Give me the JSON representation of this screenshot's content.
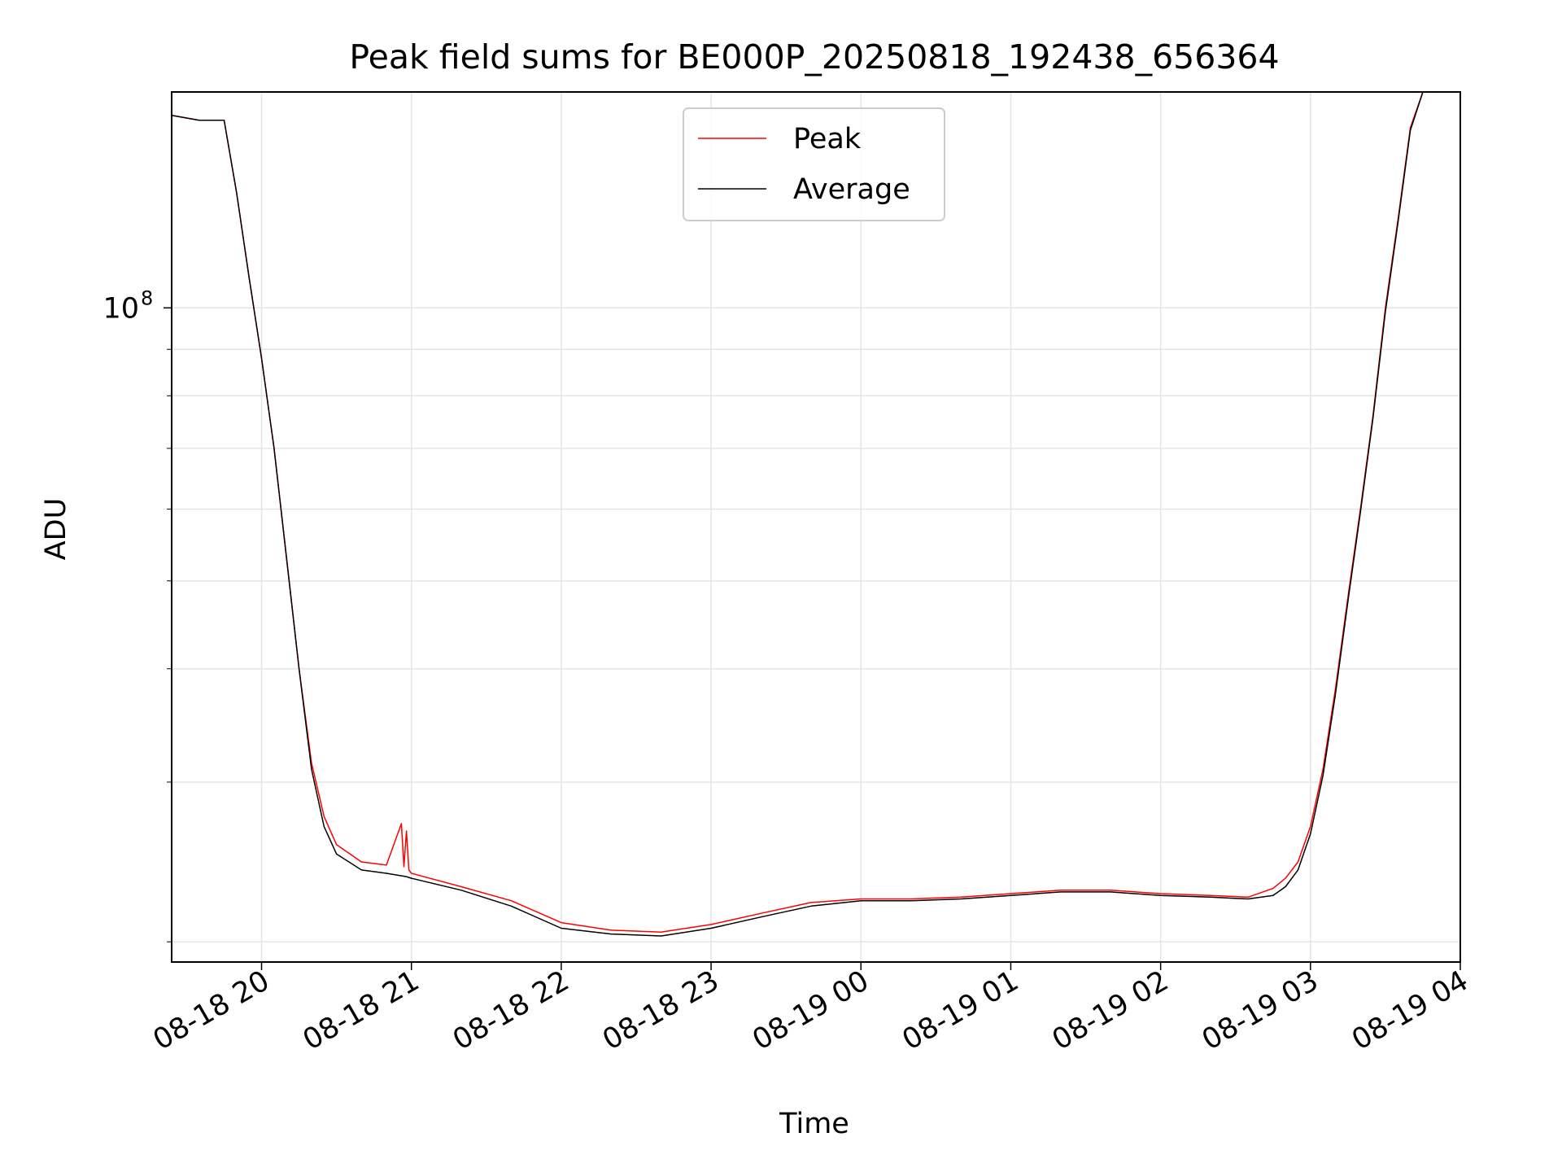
{
  "chart_data": {
    "type": "line",
    "title": "Peak field sums for BE000P_20250818_192438_656364",
    "xlabel": "Time",
    "ylabel": "ADU",
    "x_ticks": [
      "08-18 20",
      "08-18 21",
      "08-18 22",
      "08-18 23",
      "08-19 00",
      "08-19 01",
      "08-19 02",
      "08-19 03",
      "08-19 04"
    ],
    "y_tick_labels": [
      {
        "value": 100000000,
        "base": "10",
        "exp": "8"
      }
    ],
    "yscale": "log",
    "xlim": [
      "2025-08-18 19:24",
      "2025-08-19 04:00"
    ],
    "ylim": [
      19000000,
      173000000
    ],
    "grid": true,
    "legend_position": "upper center",
    "colors": {
      "Peak": "#ff0000",
      "Average": "#000000"
    },
    "series": [
      {
        "name": "Peak",
        "x": [
          "2025-08-18 19:24",
          "2025-08-18 19:35",
          "2025-08-18 19:45",
          "2025-08-18 19:50",
          "2025-08-18 19:55",
          "2025-08-18 20:00",
          "2025-08-18 20:05",
          "2025-08-18 20:10",
          "2025-08-18 20:15",
          "2025-08-18 20:20",
          "2025-08-18 20:25",
          "2025-08-18 20:30",
          "2025-08-18 20:40",
          "2025-08-18 20:50",
          "2025-08-18 20:56",
          "2025-08-18 20:57",
          "2025-08-18 20:58",
          "2025-08-18 20:59",
          "2025-08-18 21:00",
          "2025-08-18 21:20",
          "2025-08-18 21:40",
          "2025-08-18 22:00",
          "2025-08-18 22:20",
          "2025-08-18 22:40",
          "2025-08-18 23:00",
          "2025-08-18 23:20",
          "2025-08-18 23:40",
          "2025-08-19 00:00",
          "2025-08-19 00:20",
          "2025-08-19 00:40",
          "2025-08-19 01:00",
          "2025-08-19 01:20",
          "2025-08-19 01:40",
          "2025-08-19 02:00",
          "2025-08-19 02:20",
          "2025-08-19 02:35",
          "2025-08-19 02:45",
          "2025-08-19 02:50",
          "2025-08-19 02:55",
          "2025-08-19 03:00",
          "2025-08-19 03:05",
          "2025-08-19 03:10",
          "2025-08-19 03:15",
          "2025-08-19 03:20",
          "2025-08-19 03:25",
          "2025-08-19 03:30",
          "2025-08-19 03:35",
          "2025-08-19 03:40",
          "2025-08-19 03:45"
        ],
        "y": [
          163000000,
          161000000,
          161000000,
          134000000,
          108000000,
          88000000,
          70000000,
          53000000,
          40000000,
          31500000,
          27500000,
          25600000,
          24500000,
          24300000,
          27000000,
          24200000,
          26500000,
          24000000,
          23800000,
          23000000,
          22200000,
          21000000,
          20600000,
          20500000,
          20900000,
          21500000,
          22100000,
          22300000,
          22300000,
          22400000,
          22600000,
          22800000,
          22800000,
          22600000,
          22500000,
          22400000,
          22900000,
          23500000,
          24500000,
          26800000,
          31000000,
          38000000,
          48000000,
          60000000,
          76000000,
          100000000,
          125000000,
          158000000,
          173000000
        ]
      },
      {
        "name": "Average",
        "x": [
          "2025-08-18 19:24",
          "2025-08-18 19:35",
          "2025-08-18 19:45",
          "2025-08-18 19:50",
          "2025-08-18 19:55",
          "2025-08-18 20:00",
          "2025-08-18 20:05",
          "2025-08-18 20:10",
          "2025-08-18 20:15",
          "2025-08-18 20:20",
          "2025-08-18 20:25",
          "2025-08-18 20:30",
          "2025-08-18 20:40",
          "2025-08-18 20:50",
          "2025-08-18 20:58",
          "2025-08-18 21:00",
          "2025-08-18 21:20",
          "2025-08-18 21:40",
          "2025-08-18 22:00",
          "2025-08-18 22:20",
          "2025-08-18 22:40",
          "2025-08-18 23:00",
          "2025-08-18 23:20",
          "2025-08-18 23:40",
          "2025-08-19 00:00",
          "2025-08-19 00:20",
          "2025-08-19 00:40",
          "2025-08-19 01:00",
          "2025-08-19 01:20",
          "2025-08-19 01:40",
          "2025-08-19 02:00",
          "2025-08-19 02:20",
          "2025-08-19 02:35",
          "2025-08-19 02:45",
          "2025-08-19 02:50",
          "2025-08-19 02:55",
          "2025-08-19 03:00",
          "2025-08-19 03:05",
          "2025-08-19 03:10",
          "2025-08-19 03:15",
          "2025-08-19 03:20",
          "2025-08-19 03:25",
          "2025-08-19 03:30",
          "2025-08-19 03:35",
          "2025-08-19 03:40",
          "2025-08-19 03:45"
        ],
        "y": [
          163000000,
          161000000,
          161000000,
          134000000,
          108000000,
          88000000,
          70000000,
          53000000,
          40000000,
          31000000,
          26800000,
          25000000,
          24000000,
          23800000,
          23600000,
          23500000,
          22800000,
          21900000,
          20700000,
          20400000,
          20300000,
          20700000,
          21300000,
          21900000,
          22200000,
          22200000,
          22300000,
          22500000,
          22700000,
          22700000,
          22500000,
          22400000,
          22300000,
          22500000,
          23000000,
          24000000,
          26300000,
          30500000,
          37500000,
          47500000,
          59500000,
          75500000,
          99000000,
          124000000,
          157000000,
          173000000
        ]
      }
    ]
  }
}
